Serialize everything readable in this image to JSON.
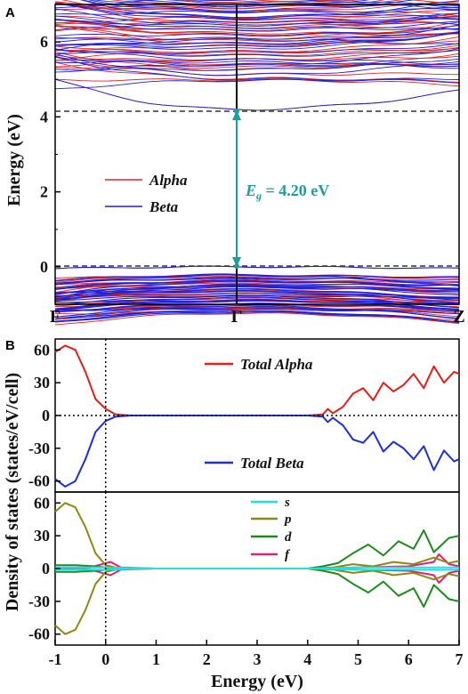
{
  "chart_data": [
    {
      "panel": "A",
      "type": "line",
      "ylabel": "Energy (eV)",
      "ylim": [
        -1,
        7
      ],
      "yticks": [
        0,
        2,
        4,
        6
      ],
      "kpoints": [
        "F",
        "Γ",
        "Z"
      ],
      "legend": {
        "position": "center-left",
        "entries": [
          {
            "name": "Alpha",
            "color": "#d62728"
          },
          {
            "name": "Beta",
            "color": "#1f1fd6"
          }
        ]
      },
      "band_gap": {
        "label_var": "E",
        "label_sub": "g",
        "label_rest": " = 4.20 eV",
        "value_eV": 4.2,
        "vbm_eV": 0.0,
        "cbm_eV": 4.2,
        "color": "#1f9c9c"
      },
      "series": [
        {
          "name": "Alpha",
          "color": "#d62728",
          "conduction_range": [
            4.2,
            7.0
          ],
          "valence_range": [
            -1.0,
            0.0
          ]
        },
        {
          "name": "Beta",
          "color": "#1f1fd6",
          "conduction_range": [
            4.2,
            7.0
          ],
          "valence_range": [
            -1.0,
            0.0
          ]
        }
      ]
    },
    {
      "panel": "B-top",
      "type": "line",
      "xlim": [
        -1,
        7
      ],
      "ylim": [
        -70,
        70
      ],
      "yticks": [
        -60,
        -30,
        0,
        30,
        60
      ],
      "fermi_level": 0,
      "series": [
        {
          "name": "Total Alpha",
          "color": "#e0201b",
          "x": [
            -1.0,
            -0.8,
            -0.6,
            -0.4,
            -0.2,
            0.0,
            0.2,
            0.5,
            1,
            2,
            3,
            4,
            4.3,
            4.4,
            4.5,
            4.7,
            4.9,
            5.1,
            5.3,
            5.5,
            5.7,
            5.9,
            6.1,
            6.3,
            6.5,
            6.7,
            6.9,
            7.0
          ],
          "y": [
            58,
            64,
            60,
            40,
            15,
            6,
            1,
            0,
            0,
            0,
            0,
            0,
            1,
            6,
            2,
            8,
            20,
            25,
            14,
            30,
            22,
            28,
            38,
            25,
            45,
            30,
            40,
            38
          ]
        },
        {
          "name": "Total Beta",
          "color": "#1f2fd6",
          "x": [
            -1.0,
            -0.8,
            -0.6,
            -0.4,
            -0.2,
            0.0,
            0.2,
            0.5,
            1,
            2,
            3,
            4,
            4.3,
            4.4,
            4.5,
            4.7,
            4.9,
            5.1,
            5.3,
            5.5,
            5.7,
            5.9,
            6.1,
            6.3,
            6.5,
            6.7,
            6.9,
            7.0
          ],
          "y": [
            -58,
            -65,
            -60,
            -40,
            -15,
            -5,
            -1,
            0,
            0,
            0,
            0,
            0,
            -1,
            -6,
            -2,
            -9,
            -22,
            -25,
            -15,
            -33,
            -24,
            -30,
            -40,
            -28,
            -50,
            -32,
            -42,
            -40
          ]
        }
      ]
    },
    {
      "panel": "B-bottom",
      "type": "line",
      "xlabel": "Energy (eV)",
      "xticks": [
        -1,
        0,
        1,
        2,
        3,
        4,
        5,
        6,
        7
      ],
      "xlim": [
        -1,
        7
      ],
      "ylim": [
        -70,
        70
      ],
      "yticks": [
        -60,
        -30,
        0,
        30,
        60
      ],
      "fermi_level": 0,
      "shared_ylabel": "Density of states (states/eV/cell)",
      "series": [
        {
          "name": "s",
          "color": "#22e0e0",
          "x": [
            -1,
            0,
            1,
            4,
            5,
            6,
            7
          ],
          "y": [
            1,
            1,
            0,
            0,
            1,
            1,
            1
          ],
          "mirror": true
        },
        {
          "name": "p",
          "color": "#8a8a10",
          "x": [
            -1.0,
            -0.8,
            -0.6,
            -0.4,
            -0.2,
            0.0,
            0.2,
            0.5,
            1,
            4,
            4.5,
            4.9,
            5.3,
            5.7,
            6.1,
            6.5,
            6.8,
            7.0
          ],
          "y": [
            52,
            60,
            56,
            38,
            14,
            3,
            1,
            0,
            0,
            0,
            1,
            4,
            2,
            6,
            4,
            10,
            5,
            7
          ],
          "mirror": true
        },
        {
          "name": "d",
          "color": "#1c8a1c",
          "x": [
            -1.0,
            -0.6,
            -0.2,
            0.0,
            0.5,
            1,
            4,
            4.3,
            4.6,
            4.9,
            5.2,
            5.5,
            5.8,
            6.1,
            6.3,
            6.5,
            6.8,
            7.0
          ],
          "y": [
            3,
            3,
            2,
            1,
            0,
            0,
            0,
            2,
            5,
            14,
            22,
            12,
            25,
            18,
            35,
            15,
            28,
            30
          ],
          "mirror": true
        },
        {
          "name": "f",
          "color": "#e0207a",
          "x": [
            -1,
            -0.3,
            0.0,
            0.1,
            0.3,
            1,
            4,
            5,
            6,
            6.5,
            6.6,
            6.8,
            7.0
          ],
          "y": [
            0,
            1,
            5,
            6,
            1,
            0,
            0,
            1,
            2,
            6,
            13,
            4,
            2
          ],
          "mirror": true
        }
      ]
    }
  ]
}
